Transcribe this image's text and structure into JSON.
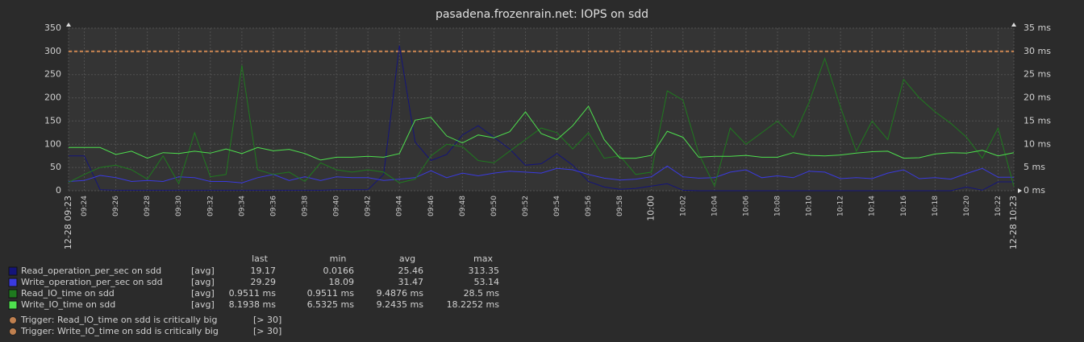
{
  "chart_data": {
    "type": "line",
    "title": "pasadena.frozenrain.net: IOPS on sdd",
    "categories": [
      "12-28 09:23",
      "09:24",
      null,
      "09:26",
      null,
      "09:28",
      null,
      "09:30",
      null,
      "09:32",
      null,
      "09:34",
      null,
      "09:36",
      null,
      "09:38",
      null,
      "09:40",
      null,
      "09:42",
      null,
      "09:44",
      null,
      "09:46",
      null,
      "09:48",
      null,
      "09:50",
      null,
      "09:52",
      null,
      "09:54",
      null,
      "09:56",
      null,
      "09:58",
      null,
      "10:00",
      null,
      "10:02",
      null,
      "10:04",
      null,
      "10:06",
      null,
      "10:08",
      null,
      "10:10",
      null,
      "10:12",
      null,
      "10:14",
      null,
      "10:16",
      null,
      "10:18",
      null,
      "10:20",
      null,
      "10:22",
      "12-28 10:23"
    ],
    "ylim": [
      0,
      350
    ],
    "yticks": [
      0,
      50,
      100,
      150,
      200,
      250,
      300,
      350
    ],
    "y2lim": [
      0,
      35
    ],
    "y2ticks": [
      {
        "value": 0,
        "label": "0 ms"
      },
      {
        "value": 5,
        "label": "5 ms"
      },
      {
        "value": 10,
        "label": "10 ms"
      },
      {
        "value": 15,
        "label": "15 ms"
      },
      {
        "value": 20,
        "label": "20 ms"
      },
      {
        "value": 25,
        "label": "25 ms"
      },
      {
        "value": 30,
        "label": "30 ms"
      },
      {
        "value": 35,
        "label": "35 ms"
      }
    ],
    "grid": true,
    "legend_columns": [
      "last",
      "min",
      "avg",
      "max"
    ],
    "series": [
      {
        "name": "Read_operation_per_sec on sdd",
        "color": "#14147a",
        "func": "[avg]",
        "stats": [
          "19.17",
          "0.0166",
          "25.46",
          "313.35"
        ],
        "values": [
          75,
          75,
          2,
          1,
          1,
          1,
          1,
          1,
          1,
          1,
          1,
          1,
          1,
          1,
          1,
          1,
          1,
          2,
          2,
          2,
          35,
          313,
          105,
          65,
          78,
          120,
          140,
          115,
          90,
          55,
          58,
          80,
          55,
          20,
          8,
          3,
          5,
          10,
          15,
          1,
          0,
          0,
          0,
          0,
          0,
          0,
          0,
          0,
          0,
          0,
          0,
          0,
          0,
          0,
          0,
          0,
          0,
          8,
          1,
          19,
          19
        ]
      },
      {
        "name": "Write_operation_per_sec on sdd",
        "color": "#3a3ae0",
        "func": "[avg]",
        "stats": [
          "29.29",
          "18.09",
          "31.47",
          "53.14"
        ],
        "values": [
          20,
          22,
          33,
          28,
          20,
          22,
          20,
          30,
          28,
          20,
          20,
          17,
          28,
          35,
          22,
          30,
          22,
          30,
          28,
          28,
          22,
          25,
          28,
          43,
          28,
          38,
          32,
          38,
          42,
          40,
          38,
          48,
          45,
          35,
          27,
          23,
          25,
          30,
          53,
          30,
          27,
          28,
          40,
          45,
          28,
          32,
          28,
          42,
          40,
          26,
          28,
          26,
          38,
          45,
          26,
          28,
          25,
          37,
          48,
          29,
          29
        ]
      },
      {
        "name": "Read_IO_time on sdd",
        "color": "#1f7a1f",
        "axis": "y2",
        "func": "[avg]",
        "stats": [
          "0.9511 ms",
          "0.9511 ms",
          "9.4876 ms",
          "28.5 ms"
        ],
        "values": [
          1.8,
          3.5,
          5,
          5.5,
          4.5,
          2.5,
          7.5,
          1.5,
          12.5,
          3,
          3.5,
          27,
          4.5,
          3.5,
          4,
          2,
          6,
          4.5,
          4,
          4.5,
          4,
          1.7,
          2.5,
          7.5,
          10,
          9.5,
          6.5,
          6,
          8.5,
          11,
          13.5,
          12.5,
          9,
          12.5,
          7,
          7.5,
          3.5,
          4,
          21.5,
          19.5,
          8,
          1,
          13.5,
          10,
          12.5,
          15,
          11.5,
          19,
          28.5,
          18,
          8.5,
          15,
          11,
          24,
          20,
          17,
          14.5,
          11.5,
          7,
          13.5,
          0.95
        ]
      },
      {
        "name": "Write_IO_time on sdd",
        "color": "#4ee04e",
        "axis": "y2",
        "func": "[avg]",
        "stats": [
          "8.1938 ms",
          "6.5325 ms",
          "9.2435 ms",
          "18.2252 ms"
        ],
        "values": [
          9.3,
          9.3,
          9.3,
          7.8,
          8.5,
          7,
          8.2,
          8,
          8.5,
          8.1,
          9,
          8,
          9.3,
          8.6,
          8.9,
          8,
          6.6,
          7.2,
          7.2,
          7.4,
          7.2,
          8,
          15.2,
          15.8,
          11.8,
          10.3,
          12,
          11.4,
          12.7,
          17,
          12.3,
          11,
          14,
          18.2,
          11,
          7,
          7,
          7.6,
          12.8,
          11.5,
          7.2,
          7.4,
          7.4,
          7.6,
          7.2,
          7.2,
          8.2,
          7.6,
          7.5,
          7.7,
          8.1,
          8.4,
          8.5,
          7,
          7.1,
          7.9,
          8.2,
          8.1,
          8.7,
          7.5,
          8.2
        ]
      }
    ],
    "triggers": [
      {
        "name": "Trigger: Read_IO_time on sdd is critically big",
        "color": "#c0804f",
        "axis": "y2",
        "value": 30,
        "label": "[> 30]"
      },
      {
        "name": "Trigger: Write_IO_time on sdd is critically big",
        "color": "#c0804f",
        "axis": "y2",
        "value": 30,
        "label": "[> 30]"
      }
    ]
  }
}
